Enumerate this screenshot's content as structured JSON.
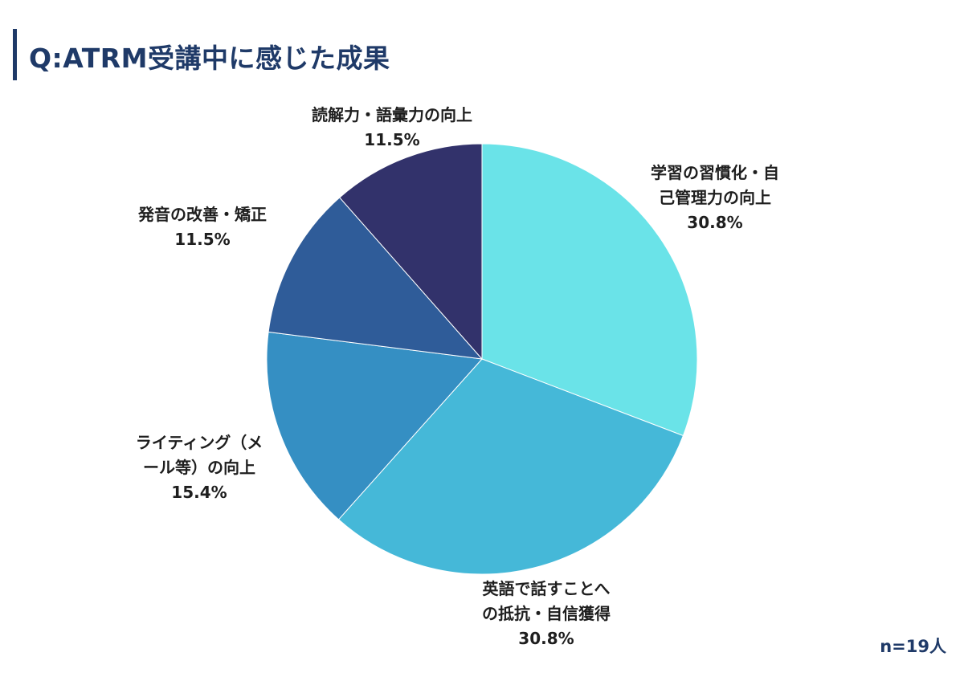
{
  "chart_data": {
    "type": "pie",
    "title": "Q:ATRM受講中に感じた成果",
    "slices": [
      {
        "label_lines": [
          "学習の習慣化・自",
          "己管理力の向上"
        ],
        "value": 30.8,
        "value_label": "30.8%",
        "color": "#6ae3e8"
      },
      {
        "label_lines": [
          "英語で話すことへ",
          "の抵抗・自信獲得"
        ],
        "value": 30.8,
        "value_label": "30.8%",
        "color": "#45b8d8"
      },
      {
        "label_lines": [
          "ライティング（メ",
          "ール等）の向上"
        ],
        "value": 15.4,
        "value_label": "15.4%",
        "color": "#358fc3"
      },
      {
        "label_lines": [
          "発音の改善・矯正"
        ],
        "value": 11.5,
        "value_label": "11.5%",
        "color": "#2f5c99"
      },
      {
        "label_lines": [
          "読解力・語彙力の向上"
        ],
        "value": 11.5,
        "value_label": "11.5%",
        "color": "#32326b"
      }
    ],
    "start": "12 o'clock",
    "direction": "clockwise",
    "legend": "none"
  },
  "footnote": "n=19人"
}
